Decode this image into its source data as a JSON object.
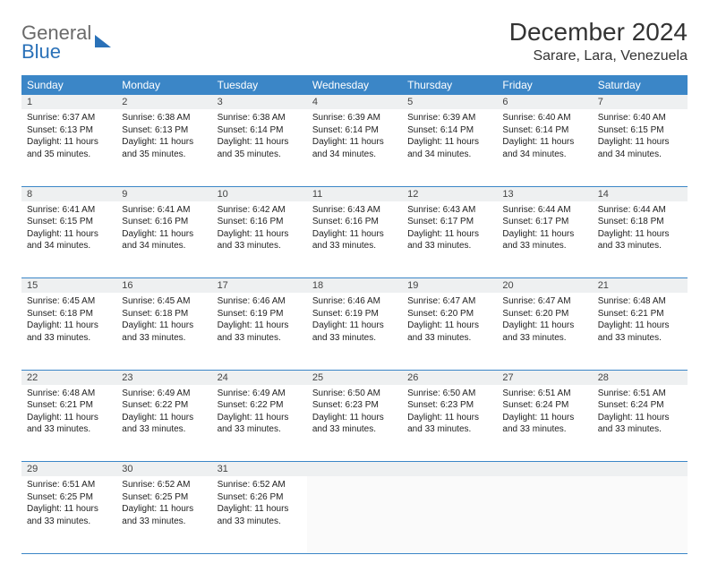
{
  "brand": {
    "word1": "General",
    "word2": "Blue"
  },
  "title": "December 2024",
  "location": "Sarare, Lara, Venezuela",
  "colors": {
    "header_bg": "#3b86c7",
    "daynum_bg": "#eef0f1",
    "row_border": "#3b86c7",
    "logo_gray": "#6a6a6a",
    "logo_blue": "#2a71b8"
  },
  "weekdays": [
    "Sunday",
    "Monday",
    "Tuesday",
    "Wednesday",
    "Thursday",
    "Friday",
    "Saturday"
  ],
  "weeks": [
    [
      {
        "n": "1",
        "sr": "6:37 AM",
        "ss": "6:13 PM",
        "dl": "11 hours and 35 minutes."
      },
      {
        "n": "2",
        "sr": "6:38 AM",
        "ss": "6:13 PM",
        "dl": "11 hours and 35 minutes."
      },
      {
        "n": "3",
        "sr": "6:38 AM",
        "ss": "6:14 PM",
        "dl": "11 hours and 35 minutes."
      },
      {
        "n": "4",
        "sr": "6:39 AM",
        "ss": "6:14 PM",
        "dl": "11 hours and 34 minutes."
      },
      {
        "n": "5",
        "sr": "6:39 AM",
        "ss": "6:14 PM",
        "dl": "11 hours and 34 minutes."
      },
      {
        "n": "6",
        "sr": "6:40 AM",
        "ss": "6:14 PM",
        "dl": "11 hours and 34 minutes."
      },
      {
        "n": "7",
        "sr": "6:40 AM",
        "ss": "6:15 PM",
        "dl": "11 hours and 34 minutes."
      }
    ],
    [
      {
        "n": "8",
        "sr": "6:41 AM",
        "ss": "6:15 PM",
        "dl": "11 hours and 34 minutes."
      },
      {
        "n": "9",
        "sr": "6:41 AM",
        "ss": "6:16 PM",
        "dl": "11 hours and 34 minutes."
      },
      {
        "n": "10",
        "sr": "6:42 AM",
        "ss": "6:16 PM",
        "dl": "11 hours and 33 minutes."
      },
      {
        "n": "11",
        "sr": "6:43 AM",
        "ss": "6:16 PM",
        "dl": "11 hours and 33 minutes."
      },
      {
        "n": "12",
        "sr": "6:43 AM",
        "ss": "6:17 PM",
        "dl": "11 hours and 33 minutes."
      },
      {
        "n": "13",
        "sr": "6:44 AM",
        "ss": "6:17 PM",
        "dl": "11 hours and 33 minutes."
      },
      {
        "n": "14",
        "sr": "6:44 AM",
        "ss": "6:18 PM",
        "dl": "11 hours and 33 minutes."
      }
    ],
    [
      {
        "n": "15",
        "sr": "6:45 AM",
        "ss": "6:18 PM",
        "dl": "11 hours and 33 minutes."
      },
      {
        "n": "16",
        "sr": "6:45 AM",
        "ss": "6:18 PM",
        "dl": "11 hours and 33 minutes."
      },
      {
        "n": "17",
        "sr": "6:46 AM",
        "ss": "6:19 PM",
        "dl": "11 hours and 33 minutes."
      },
      {
        "n": "18",
        "sr": "6:46 AM",
        "ss": "6:19 PM",
        "dl": "11 hours and 33 minutes."
      },
      {
        "n": "19",
        "sr": "6:47 AM",
        "ss": "6:20 PM",
        "dl": "11 hours and 33 minutes."
      },
      {
        "n": "20",
        "sr": "6:47 AM",
        "ss": "6:20 PM",
        "dl": "11 hours and 33 minutes."
      },
      {
        "n": "21",
        "sr": "6:48 AM",
        "ss": "6:21 PM",
        "dl": "11 hours and 33 minutes."
      }
    ],
    [
      {
        "n": "22",
        "sr": "6:48 AM",
        "ss": "6:21 PM",
        "dl": "11 hours and 33 minutes."
      },
      {
        "n": "23",
        "sr": "6:49 AM",
        "ss": "6:22 PM",
        "dl": "11 hours and 33 minutes."
      },
      {
        "n": "24",
        "sr": "6:49 AM",
        "ss": "6:22 PM",
        "dl": "11 hours and 33 minutes."
      },
      {
        "n": "25",
        "sr": "6:50 AM",
        "ss": "6:23 PM",
        "dl": "11 hours and 33 minutes."
      },
      {
        "n": "26",
        "sr": "6:50 AM",
        "ss": "6:23 PM",
        "dl": "11 hours and 33 minutes."
      },
      {
        "n": "27",
        "sr": "6:51 AM",
        "ss": "6:24 PM",
        "dl": "11 hours and 33 minutes."
      },
      {
        "n": "28",
        "sr": "6:51 AM",
        "ss": "6:24 PM",
        "dl": "11 hours and 33 minutes."
      }
    ],
    [
      {
        "n": "29",
        "sr": "6:51 AM",
        "ss": "6:25 PM",
        "dl": "11 hours and 33 minutes."
      },
      {
        "n": "30",
        "sr": "6:52 AM",
        "ss": "6:25 PM",
        "dl": "11 hours and 33 minutes."
      },
      {
        "n": "31",
        "sr": "6:52 AM",
        "ss": "6:26 PM",
        "dl": "11 hours and 33 minutes."
      },
      null,
      null,
      null,
      null
    ]
  ],
  "labels": {
    "sunrise": "Sunrise: ",
    "sunset": "Sunset: ",
    "daylight": "Daylight: "
  }
}
